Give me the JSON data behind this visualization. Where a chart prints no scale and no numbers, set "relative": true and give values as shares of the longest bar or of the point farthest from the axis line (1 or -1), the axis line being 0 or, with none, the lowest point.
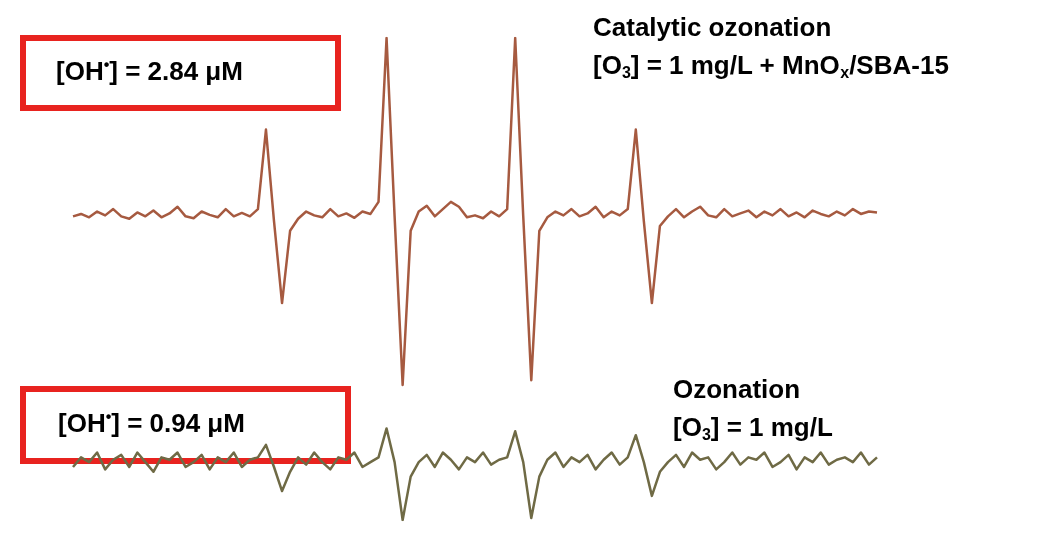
{
  "chart_data": {
    "type": "line",
    "relative": true,
    "marker": "none",
    "categories": [
      null,
      null,
      null,
      null,
      null,
      null,
      null,
      null,
      null,
      null,
      null,
      null,
      null,
      null,
      null,
      null,
      null,
      null,
      null,
      null,
      null,
      null,
      null,
      null,
      null,
      null,
      null,
      null,
      null,
      null,
      null,
      null,
      null,
      null,
      null,
      null,
      null,
      null,
      null,
      null,
      null,
      null,
      null,
      null,
      null,
      null,
      null,
      null,
      null,
      null,
      null,
      null,
      null,
      null,
      null,
      null,
      null,
      null,
      null,
      null,
      null,
      null,
      null,
      null,
      null,
      null,
      null,
      null,
      null,
      null,
      null,
      null,
      null,
      null,
      null,
      null,
      null,
      null,
      null,
      null,
      null,
      null,
      null,
      null,
      null,
      null,
      null,
      null,
      null,
      null,
      null,
      null,
      null,
      null,
      null,
      null,
      null,
      null,
      null,
      null,
      null
    ],
    "series": [
      {
        "name": "Catalytic ozonation",
        "color": "#a65a40",
        "values": [
          0.63,
          0.635,
          0.628,
          0.64,
          0.632,
          0.645,
          0.63,
          0.625,
          0.638,
          0.63,
          0.642,
          0.628,
          0.636,
          0.65,
          0.63,
          0.626,
          0.64,
          0.633,
          0.628,
          0.645,
          0.63,
          0.637,
          0.63,
          0.645,
          0.81,
          0.62,
          0.45,
          0.6,
          0.625,
          0.64,
          0.632,
          0.628,
          0.645,
          0.63,
          0.636,
          0.627,
          0.64,
          0.635,
          0.66,
          1.0,
          0.63,
          0.28,
          0.6,
          0.64,
          0.652,
          0.63,
          0.645,
          0.66,
          0.65,
          0.628,
          0.632,
          0.626,
          0.64,
          0.63,
          0.645,
          1.0,
          0.63,
          0.29,
          0.6,
          0.628,
          0.64,
          0.632,
          0.645,
          0.63,
          0.636,
          0.65,
          0.628,
          0.64,
          0.632,
          0.645,
          0.81,
          0.62,
          0.45,
          0.61,
          0.63,
          0.645,
          0.628,
          0.64,
          0.65,
          0.632,
          0.628,
          0.645,
          0.63,
          0.636,
          0.642,
          0.628,
          0.64,
          0.632,
          0.645,
          0.63,
          0.638,
          0.628,
          0.642,
          0.635,
          0.63,
          0.64,
          0.632,
          0.645,
          0.635,
          0.64,
          0.638
        ]
      },
      {
        "name": "Ozonation",
        "color": "#6f6a45",
        "values": [
          0.11,
          0.13,
          0.12,
          0.14,
          0.105,
          0.125,
          0.135,
          0.11,
          0.14,
          0.12,
          0.1,
          0.13,
          0.125,
          0.14,
          0.11,
          0.12,
          0.135,
          0.105,
          0.13,
          0.12,
          0.14,
          0.11,
          0.125,
          0.13,
          0.156,
          0.11,
          0.06,
          0.1,
          0.13,
          0.115,
          0.14,
          0.12,
          0.105,
          0.13,
          0.125,
          0.14,
          0.11,
          0.12,
          0.13,
          0.19,
          0.12,
          0.0,
          0.09,
          0.12,
          0.135,
          0.11,
          0.14,
          0.125,
          0.105,
          0.13,
          0.12,
          0.14,
          0.115,
          0.125,
          0.13,
          0.184,
          0.12,
          0.004,
          0.09,
          0.125,
          0.14,
          0.11,
          0.13,
          0.12,
          0.135,
          0.105,
          0.125,
          0.14,
          0.115,
          0.13,
          0.176,
          0.12,
          0.05,
          0.1,
          0.12,
          0.135,
          0.11,
          0.14,
          0.125,
          0.13,
          0.105,
          0.12,
          0.14,
          0.115,
          0.13,
          0.125,
          0.14,
          0.11,
          0.12,
          0.135,
          0.105,
          0.13,
          0.12,
          0.14,
          0.115,
          0.125,
          0.13,
          0.12,
          0.14,
          0.115,
          0.13
        ]
      }
    ],
    "annotations": [
      "[OH$^{•}$] = 2.84 μM",
      "[O$_{3}$] = 1 mg/L + MnO$_{x}$/SBA-15",
      "[OH$^{•}$] = 0.94 μM",
      "[O$_{3}$] = 1 mg/L"
    ]
  }
}
